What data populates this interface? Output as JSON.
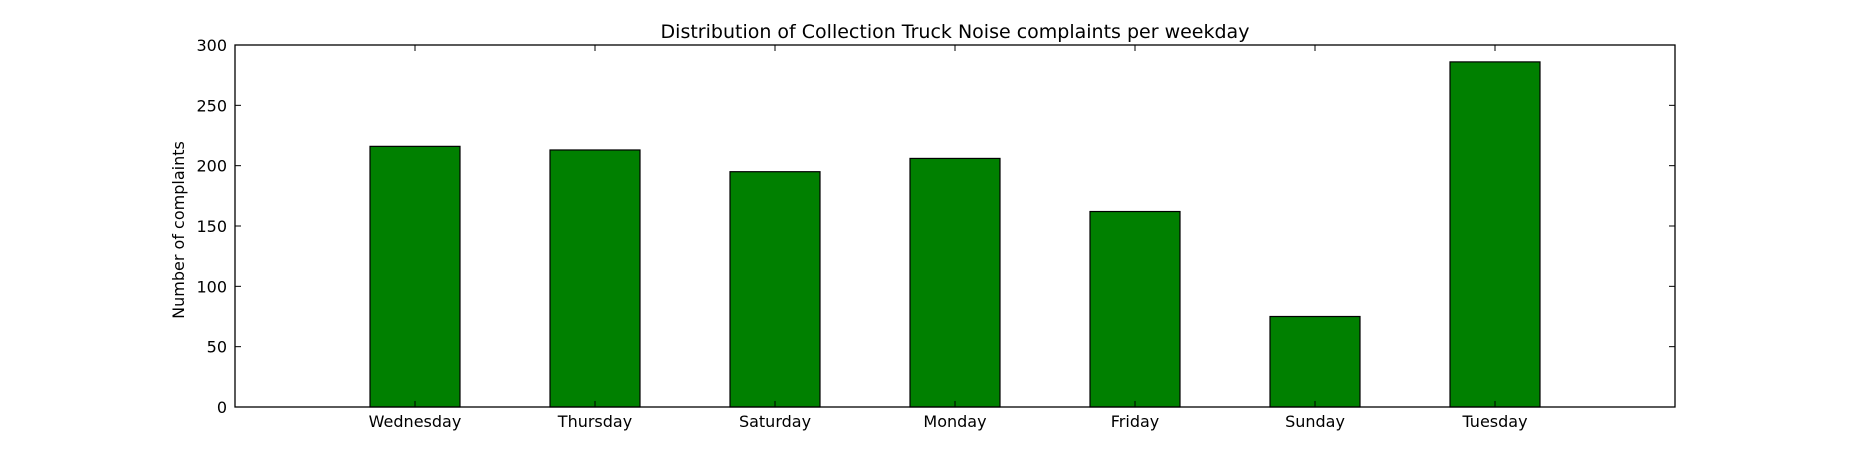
{
  "chart_data": {
    "type": "bar",
    "title": "Distribution of  Collection Truck Noise complaints per weekday",
    "xlabel": "",
    "ylabel": "Number of complaints",
    "categories": [
      "Wednesday",
      "Thursday",
      "Saturday",
      "Monday",
      "Friday",
      "Sunday",
      "Tuesday"
    ],
    "values": [
      216,
      213,
      195,
      206,
      162,
      75,
      286
    ],
    "ylim": [
      0,
      300
    ],
    "yticks": [
      0,
      50,
      100,
      150,
      200,
      250,
      300
    ],
    "ytick_labels": [
      "0",
      "50",
      "100",
      "150",
      "200",
      "250",
      "300"
    ],
    "bar_color": "#008000",
    "edge_color": "#000000",
    "grid": false,
    "legend": "none"
  }
}
